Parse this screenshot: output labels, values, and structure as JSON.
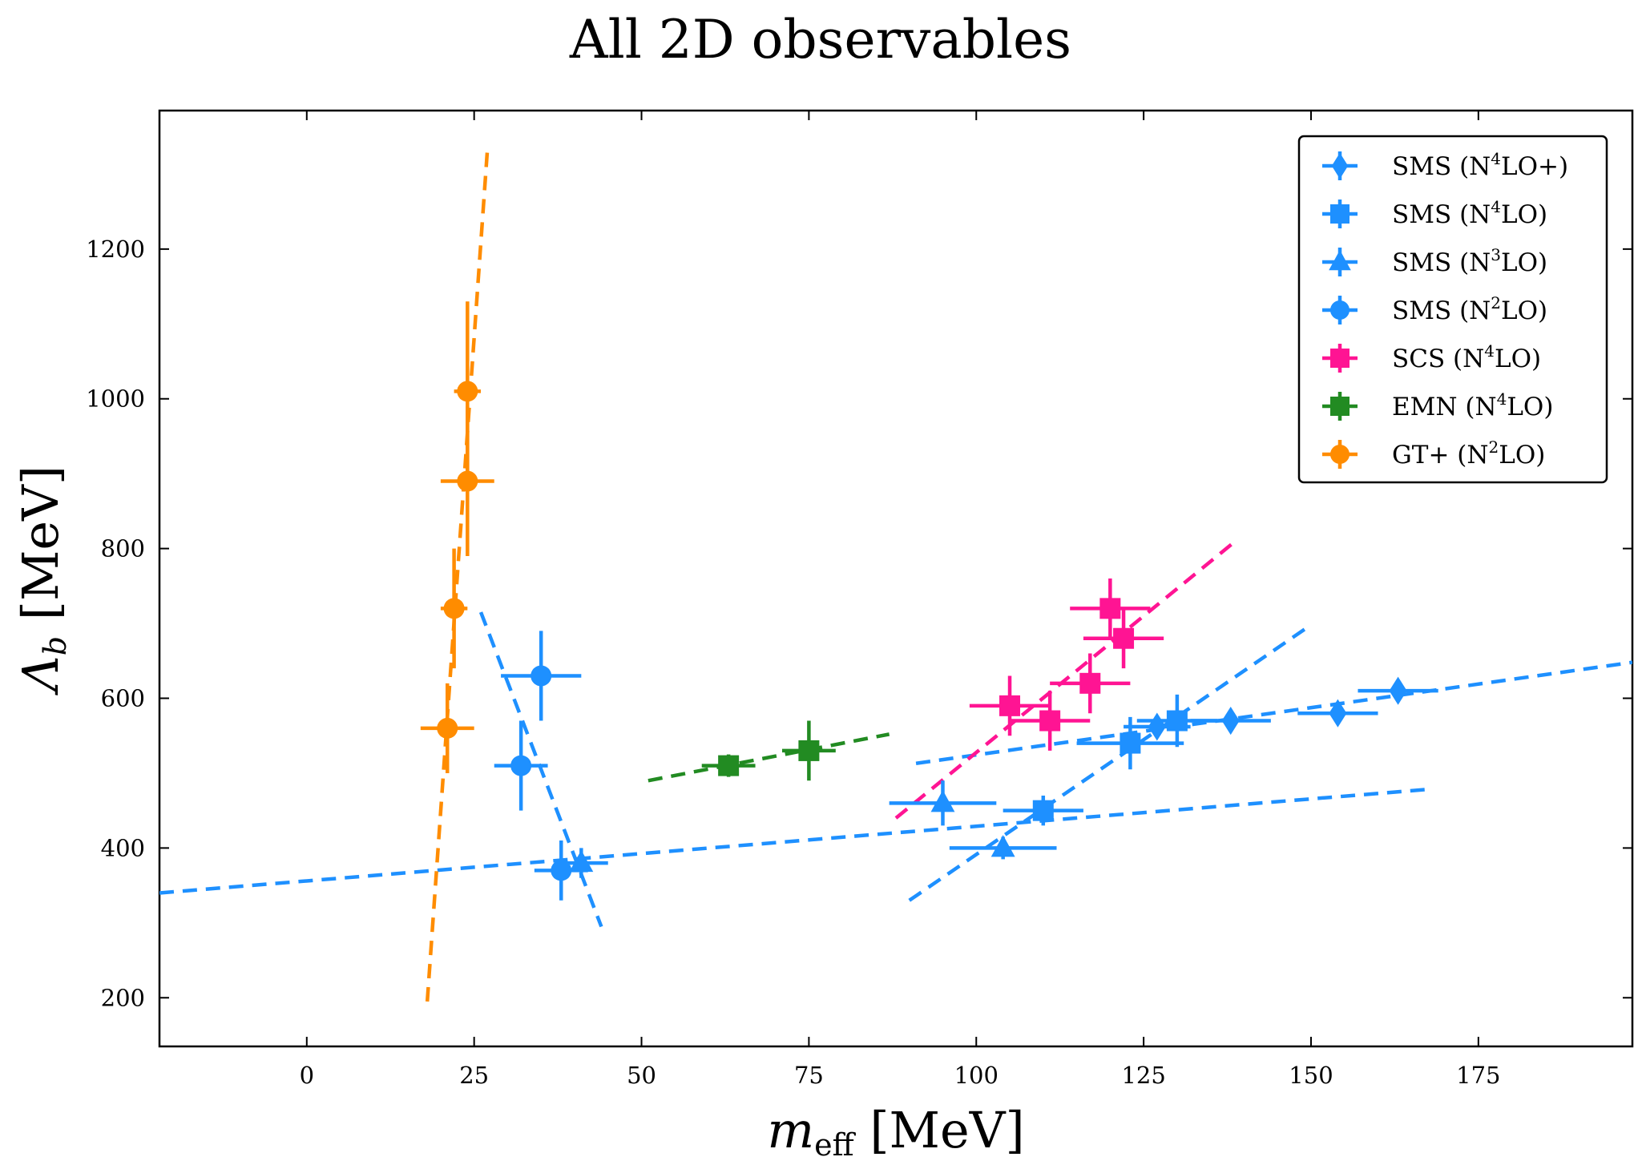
{
  "chart_data": {
    "type": "scatter",
    "title": "All 2D observables",
    "xlabel_main": "m",
    "xlabel_sub": "eff",
    "xlabel_unit": "[MeV]",
    "ylabel_main": "Λ",
    "ylabel_sub": "b",
    "ylabel_unit": "[MeV]",
    "xlim": [
      -22,
      198
    ],
    "ylim": [
      135,
      1385
    ],
    "x_ticks": [
      0,
      25,
      50,
      75,
      100,
      125,
      150,
      175
    ],
    "y_ticks": [
      200,
      400,
      600,
      800,
      1000,
      1200
    ],
    "grid": false,
    "legend_position": "top-right",
    "series": [
      {
        "name": "SMS (N⁴LO+)",
        "label_pre": "SMS (N",
        "label_sup": "4",
        "label_post": "LO+)",
        "color": "#1e90ff",
        "marker": "diamond",
        "points": [
          {
            "x": 127,
            "y": 562,
            "xerr": 5,
            "yerr": 15
          },
          {
            "x": 138,
            "y": 570,
            "xerr": 6,
            "yerr": 15
          },
          {
            "x": 154,
            "y": 580,
            "xerr": 6,
            "yerr": 15
          },
          {
            "x": 163,
            "y": 610,
            "xerr": 6,
            "yerr": 15
          }
        ],
        "fit_line": [
          [
            91,
            513
          ],
          [
            198,
            648
          ]
        ]
      },
      {
        "name": "SMS (N⁴LO)",
        "label_pre": "SMS (N",
        "label_sup": "4",
        "label_post": "LO)",
        "color": "#1e90ff",
        "marker": "square",
        "points": [
          {
            "x": 110,
            "y": 450,
            "xerr": 6,
            "yerr": 20
          },
          {
            "x": 123,
            "y": 540,
            "xerr": 8,
            "yerr": 35
          },
          {
            "x": 130,
            "y": 570,
            "xerr": 6,
            "yerr": 35
          }
        ],
        "fit_line": [
          [
            -22,
            340
          ],
          [
            167,
            478
          ]
        ]
      },
      {
        "name": "SMS (N³LO)",
        "label_pre": "SMS (N",
        "label_sup": "3",
        "label_post": "LO)",
        "color": "#1e90ff",
        "marker": "triangle",
        "points": [
          {
            "x": 41,
            "y": 380,
            "xerr": 4,
            "yerr": 20
          },
          {
            "x": 95,
            "y": 460,
            "xerr": 8,
            "yerr": 30
          },
          {
            "x": 104,
            "y": 400,
            "xerr": 8,
            "yerr": 15
          }
        ],
        "fit_line": [
          [
            90,
            330
          ],
          [
            150,
            698
          ]
        ]
      },
      {
        "name": "SMS (N²LO)",
        "label_pre": "SMS (N",
        "label_sup": "2",
        "label_post": "LO)",
        "color": "#1e90ff",
        "marker": "circle",
        "points": [
          {
            "x": 32,
            "y": 510,
            "xerr": 4,
            "yerr": 60
          },
          {
            "x": 35,
            "y": 630,
            "xerr": 6,
            "yerr": 60
          },
          {
            "x": 38,
            "y": 370,
            "xerr": 4,
            "yerr": 40
          }
        ],
        "fit_line": [
          [
            26,
            715
          ],
          [
            44,
            295
          ]
        ]
      },
      {
        "name": "SCS (N⁴LO)",
        "label_pre": "SCS (N",
        "label_sup": "4",
        "label_post": "LO)",
        "color": "#ff1493",
        "marker": "square",
        "points": [
          {
            "x": 105,
            "y": 590,
            "xerr": 6,
            "yerr": 40
          },
          {
            "x": 111,
            "y": 570,
            "xerr": 6,
            "yerr": 40
          },
          {
            "x": 117,
            "y": 620,
            "xerr": 6,
            "yerr": 40
          },
          {
            "x": 120,
            "y": 720,
            "xerr": 6,
            "yerr": 40
          },
          {
            "x": 122,
            "y": 680,
            "xerr": 6,
            "yerr": 40
          }
        ],
        "fit_line": [
          [
            88,
            440
          ],
          [
            139,
            812
          ]
        ]
      },
      {
        "name": "EMN (N⁴LO)",
        "label_pre": "EMN (N",
        "label_sup": "4",
        "label_post": "LO)",
        "color": "#228b22",
        "marker": "square",
        "points": [
          {
            "x": 63,
            "y": 510,
            "xerr": 4,
            "yerr": 15
          },
          {
            "x": 75,
            "y": 530,
            "xerr": 4,
            "yerr": 40
          }
        ],
        "fit_line": [
          [
            51,
            490
          ],
          [
            87,
            552
          ]
        ]
      },
      {
        "name": "GT+ (N²LO)",
        "label_pre": "GT+ (N",
        "label_sup": "2",
        "label_post": "LO)",
        "color": "#ff8c00",
        "marker": "circle",
        "points": [
          {
            "x": 21,
            "y": 560,
            "xerr": 4,
            "yerr": 60
          },
          {
            "x": 22,
            "y": 720,
            "xerr": 2,
            "yerr": 80
          },
          {
            "x": 24,
            "y": 890,
            "xerr": 4,
            "yerr": 100
          },
          {
            "x": 24,
            "y": 1010,
            "xerr": 2,
            "yerr": 120
          }
        ],
        "fit_line": [
          [
            18,
            195
          ],
          [
            27,
            1335
          ]
        ]
      }
    ]
  }
}
